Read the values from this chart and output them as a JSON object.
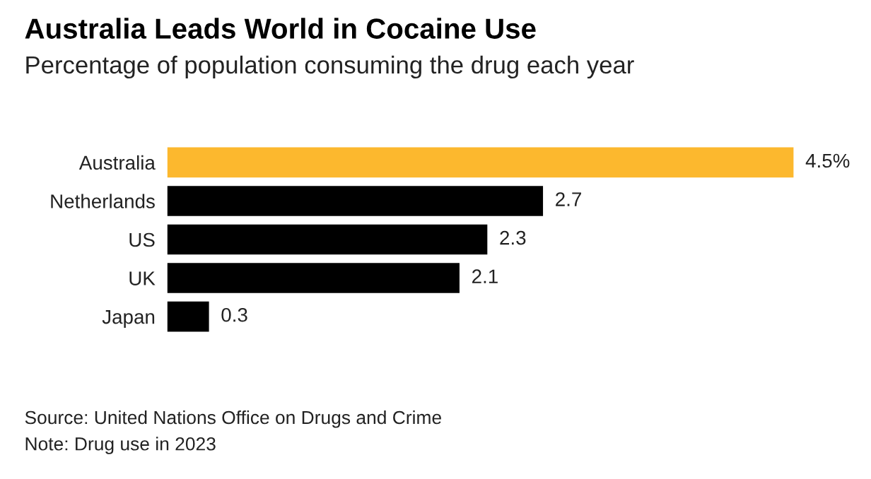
{
  "chart_data": {
    "type": "bar",
    "orientation": "horizontal",
    "title": "Australia Leads World in Cocaine Use",
    "subtitle": "Percentage of population consuming the drug each year",
    "categories": [
      "Australia",
      "Netherlands",
      "US",
      "UK",
      "Japan"
    ],
    "values": [
      4.5,
      2.7,
      2.3,
      2.1,
      0.3
    ],
    "colors": [
      "#fcb82e",
      "#000000",
      "#000000",
      "#000000",
      "#000000"
    ],
    "value_labels": [
      "4.5%",
      "2.7",
      "2.3",
      "2.1",
      "0.3"
    ],
    "grid": false,
    "legend": false,
    "annotations": [
      "Source: United Nations Office on Drugs and Crime",
      "Note: Drug use in 2023"
    ]
  }
}
